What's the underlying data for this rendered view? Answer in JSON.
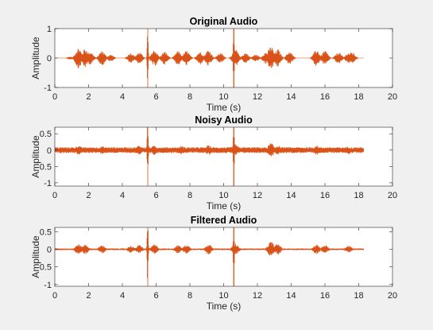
{
  "figure": {
    "background": "#f0f0f0",
    "axes_background": "#ffffff",
    "line_color": "#d95319",
    "axis_color": "#262626"
  },
  "chart_data": [
    {
      "type": "line",
      "title": "Original Audio",
      "xlabel": "Time (s)",
      "ylabel": "Amplitude",
      "xlim": [
        0,
        20
      ],
      "ylim": [
        -1,
        1
      ],
      "xticks": [
        "0",
        "2",
        "4",
        "6",
        "8",
        "10",
        "12",
        "14",
        "16",
        "18",
        "20"
      ],
      "yticks": [
        "-1",
        "0",
        "1"
      ],
      "ytick_values": [
        -1,
        0,
        1
      ],
      "grid": false,
      "duration_s": 18.3,
      "noise_floor": 0.01,
      "envelope": [
        [
          0.9,
          0.05
        ],
        [
          1.4,
          0.35
        ],
        [
          1.8,
          0.32
        ],
        [
          2.1,
          0.22
        ],
        [
          2.8,
          0.25
        ],
        [
          3.3,
          0.12
        ],
        [
          4.5,
          0.18
        ],
        [
          5.0,
          0.2
        ],
        [
          5.5,
          1.0
        ],
        [
          5.9,
          0.28
        ],
        [
          6.5,
          0.22
        ],
        [
          7.3,
          0.24
        ],
        [
          7.8,
          0.25
        ],
        [
          8.6,
          0.22
        ],
        [
          9.1,
          0.28
        ],
        [
          9.8,
          0.18
        ],
        [
          10.6,
          1.0
        ],
        [
          10.7,
          0.3
        ],
        [
          11.3,
          0.18
        ],
        [
          11.9,
          0.12
        ],
        [
          12.5,
          0.2
        ],
        [
          12.8,
          0.4
        ],
        [
          13.2,
          0.3
        ],
        [
          13.9,
          0.22
        ],
        [
          15.5,
          0.28
        ],
        [
          16.0,
          0.25
        ],
        [
          16.8,
          0.2
        ],
        [
          17.4,
          0.18
        ],
        [
          17.6,
          0.2
        ]
      ]
    },
    {
      "type": "line",
      "title": "Noisy Audio",
      "xlabel": "Time (s)",
      "ylabel": "Amplitude",
      "xlim": [
        0,
        20
      ],
      "ylim": [
        -1.1,
        0.7
      ],
      "xticks": [
        "0",
        "2",
        "4",
        "6",
        "8",
        "10",
        "12",
        "14",
        "16",
        "18",
        "20"
      ],
      "yticks": [
        "0.5",
        "0",
        "-0.5",
        "-1"
      ],
      "ytick_values": [
        0.5,
        0,
        -0.5,
        -1
      ],
      "grid": false,
      "duration_s": 18.3,
      "noise_floor": 0.09,
      "envelope": [
        [
          1.4,
          0.15
        ],
        [
          2.8,
          0.12
        ],
        [
          5.0,
          0.15
        ],
        [
          5.5,
          1.0
        ],
        [
          5.9,
          0.15
        ],
        [
          7.5,
          0.13
        ],
        [
          9.1,
          0.15
        ],
        [
          10.6,
          1.0
        ],
        [
          10.7,
          0.18
        ],
        [
          12.8,
          0.22
        ],
        [
          13.2,
          0.15
        ],
        [
          15.5,
          0.15
        ],
        [
          17.4,
          0.12
        ]
      ]
    },
    {
      "type": "line",
      "title": "Filtered Audio",
      "xlabel": "Time (s)",
      "ylabel": "Amplitude",
      "xlim": [
        0,
        20
      ],
      "ylim": [
        -1.05,
        0.62
      ],
      "xticks": [
        "0",
        "2",
        "4",
        "6",
        "8",
        "10",
        "12",
        "14",
        "16",
        "18",
        "20"
      ],
      "yticks": [
        "0.5",
        "0",
        "-0.5",
        "-1"
      ],
      "ytick_values": [
        0.5,
        0,
        -0.5,
        -1
      ],
      "grid": false,
      "duration_s": 18.3,
      "noise_floor": 0.025,
      "envelope": [
        [
          1.4,
          0.15
        ],
        [
          1.8,
          0.14
        ],
        [
          2.8,
          0.12
        ],
        [
          4.5,
          0.1
        ],
        [
          5.0,
          0.12
        ],
        [
          5.5,
          1.0
        ],
        [
          5.9,
          0.14
        ],
        [
          7.3,
          0.12
        ],
        [
          7.8,
          0.13
        ],
        [
          9.1,
          0.15
        ],
        [
          10.6,
          1.0
        ],
        [
          10.7,
          0.16
        ],
        [
          12.8,
          0.22
        ],
        [
          13.2,
          0.16
        ],
        [
          15.5,
          0.14
        ],
        [
          16.0,
          0.12
        ],
        [
          17.4,
          0.1
        ]
      ]
    }
  ]
}
